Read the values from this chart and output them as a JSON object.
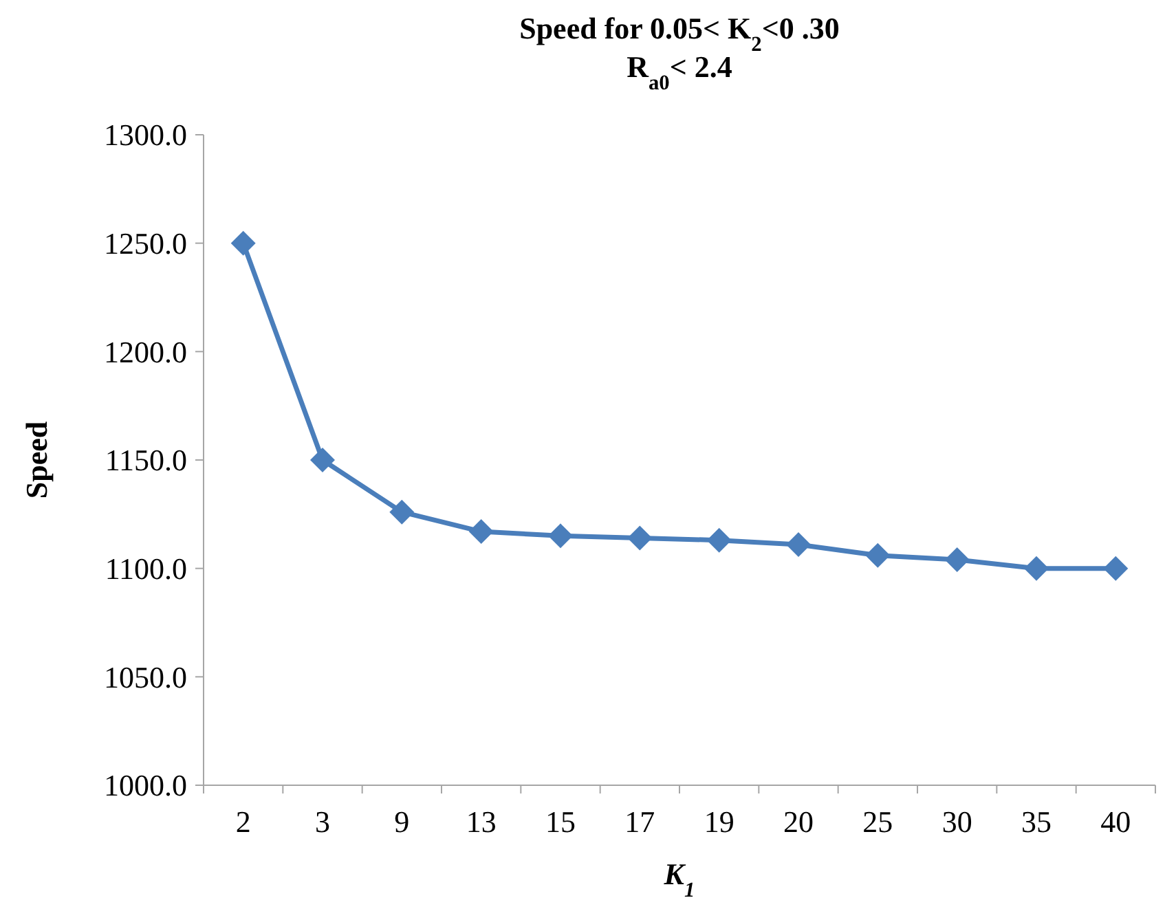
{
  "chart_data": {
    "type": "line",
    "title": "Speed for 0.05< K$_{2}$<0 .30",
    "subtitle": "R$_{a0}$< 2.4",
    "xlabel": "K$_{1}$",
    "ylabel": "Speed",
    "categories": [
      "2",
      "3",
      "9",
      "13",
      "15",
      "17",
      "19",
      "20",
      "25",
      "30",
      "35",
      "40"
    ],
    "series": [
      {
        "color": "#4a7ebb",
        "values": [
          1250,
          1150,
          1126,
          1117,
          1115,
          1114,
          1113,
          1111,
          1106,
          1104,
          1100,
          1100
        ]
      }
    ],
    "ylim": [
      1000,
      1300
    ],
    "yticks": [
      {
        "value": 1000,
        "label": "1000.0"
      },
      {
        "value": 1050,
        "label": "1050.0"
      },
      {
        "value": 1100,
        "label": "1100.0"
      },
      {
        "value": 1150,
        "label": "1150.0"
      },
      {
        "value": 1200,
        "label": "1200.0"
      },
      {
        "value": 1250,
        "label": "1250.0"
      },
      {
        "value": 1300,
        "label": "1300.0"
      }
    ],
    "grid": false,
    "marker": "diamond",
    "line_style": "solid"
  }
}
